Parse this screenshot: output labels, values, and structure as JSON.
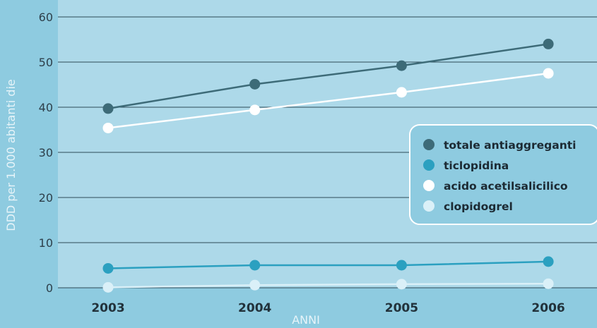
{
  "chart_data": {
    "type": "line",
    "title": "",
    "xlabel": "ANNI",
    "ylabel": "DDD per 1.000 abitanti die",
    "categories": [
      "2003",
      "2004",
      "2005",
      "2006"
    ],
    "ylim": [
      0,
      60
    ],
    "yticks": [
      "0",
      "10",
      "20",
      "30",
      "40",
      "50",
      "60"
    ],
    "grid": "horizontal",
    "legend_position": "right",
    "series": [
      {
        "name": "totale antiaggreganti",
        "color": "#3d6b78",
        "values": [
          39.7,
          45.1,
          49.2,
          54.0
        ]
      },
      {
        "name": "ticlopidina",
        "color": "#2ba0c0",
        "values": [
          4.3,
          5.0,
          5.0,
          5.8
        ]
      },
      {
        "name": "acido acetilsalicilico",
        "color": "#ffffff",
        "values": [
          35.4,
          39.4,
          43.3,
          47.5
        ]
      },
      {
        "name": "clopidogrel",
        "color": "#daf0f8",
        "values": [
          0.1,
          0.6,
          0.8,
          0.9
        ]
      }
    ]
  }
}
